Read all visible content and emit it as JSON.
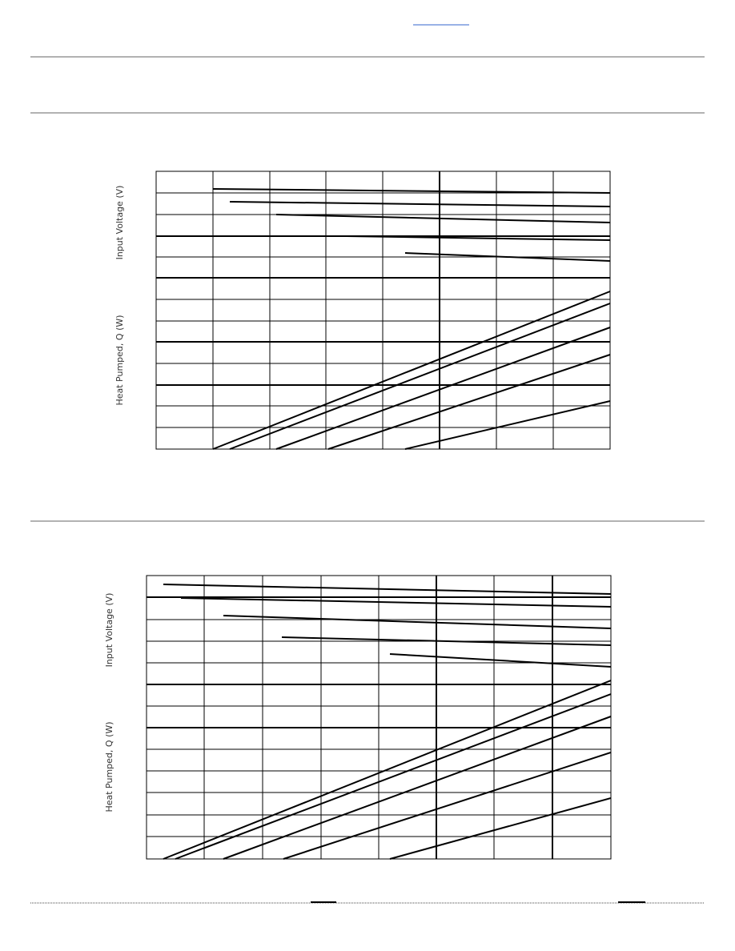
{
  "charts": [
    {
      "voltage_label": "Input Voltage (V)",
      "heat_label": "Heat Pumped, Q (W)"
    },
    {
      "voltage_label": "Input Voltage (V)",
      "heat_label": "Heat Pumped, Q (W)"
    }
  ]
}
